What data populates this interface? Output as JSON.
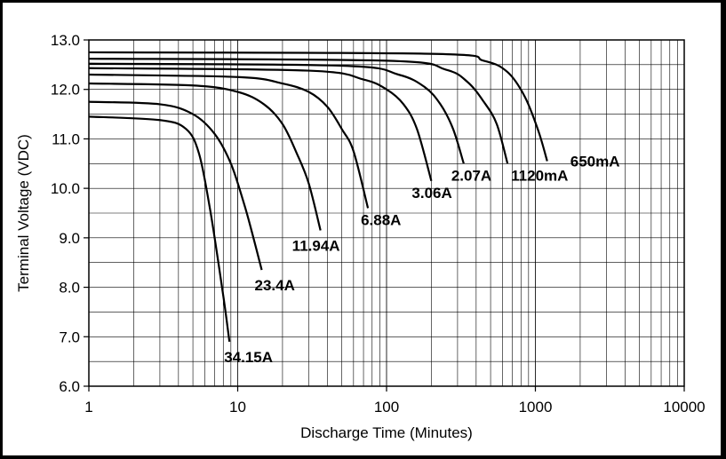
{
  "chart_data": {
    "type": "line",
    "title": "",
    "xlabel": "Discharge Time (Minutes)",
    "ylabel": "Terminal Voltage (VDC)",
    "xscale": "log",
    "xlim": [
      1,
      10000
    ],
    "ylim": [
      6.0,
      13.0
    ],
    "x_ticks": [
      "1",
      "10",
      "100",
      "1000",
      "10000"
    ],
    "y_ticks": [
      "6.0",
      "7.0",
      "8.0",
      "9.0",
      "10.0",
      "11.0",
      "12.0",
      "13.0"
    ],
    "grid": true,
    "legend": "none",
    "line_color": "#000000",
    "series": [
      {
        "name": "34.15A",
        "x": [
          1,
          3,
          4.5,
          5.5,
          6.5,
          7.5,
          8.2,
          8.8
        ],
        "y": [
          11.45,
          11.38,
          11.2,
          10.7,
          9.6,
          8.4,
          7.6,
          6.9
        ]
      },
      {
        "name": "23.4A",
        "x": [
          1,
          3,
          5,
          7,
          9,
          11,
          12.5,
          14.5
        ],
        "y": [
          11.75,
          11.7,
          11.5,
          11.1,
          10.5,
          9.7,
          9.1,
          8.35
        ]
      },
      {
        "name": "11.94A",
        "x": [
          1,
          5,
          10,
          15,
          20,
          25,
          30,
          36
        ],
        "y": [
          12.12,
          12.08,
          11.95,
          11.7,
          11.3,
          10.7,
          10.1,
          9.15
        ]
      },
      {
        "name": "6.88A",
        "x": [
          1,
          10,
          20,
          30,
          40,
          50,
          60,
          75
        ],
        "y": [
          12.3,
          12.25,
          12.12,
          11.95,
          11.65,
          11.2,
          10.75,
          9.6
        ]
      },
      {
        "name": "3.06A",
        "x": [
          1,
          30,
          70,
          100,
          130,
          160,
          200
        ],
        "y": [
          12.43,
          12.38,
          12.2,
          12.0,
          11.7,
          11.2,
          10.15
        ]
      },
      {
        "name": "2.07A",
        "x": [
          1,
          50,
          120,
          180,
          230,
          280,
          330
        ],
        "y": [
          12.52,
          12.48,
          12.3,
          12.05,
          11.7,
          11.2,
          10.5
        ]
      },
      {
        "name": "1120mA",
        "x": [
          1,
          100,
          250,
          350,
          450,
          550,
          650
        ],
        "y": [
          12.62,
          12.58,
          12.4,
          12.15,
          11.75,
          11.3,
          10.5
        ]
      },
      {
        "name": "650mA",
        "x": [
          1,
          200,
          450,
          650,
          850,
          1050,
          1200
        ],
        "y": [
          12.75,
          12.72,
          12.58,
          12.35,
          11.85,
          11.15,
          10.55
        ]
      }
    ],
    "curve_labels": [
      {
        "text": "34.15A",
        "at_series": 0
      },
      {
        "text": "23.4A",
        "at_series": 1
      },
      {
        "text": "11.94A",
        "at_series": 2
      },
      {
        "text": "6.88A",
        "at_series": 3
      },
      {
        "text": "3.06A",
        "at_series": 4
      },
      {
        "text": "2.07A",
        "at_series": 5
      },
      {
        "text": "1120mA",
        "at_series": 6
      },
      {
        "text": "650mA",
        "at_series": 7
      }
    ]
  }
}
